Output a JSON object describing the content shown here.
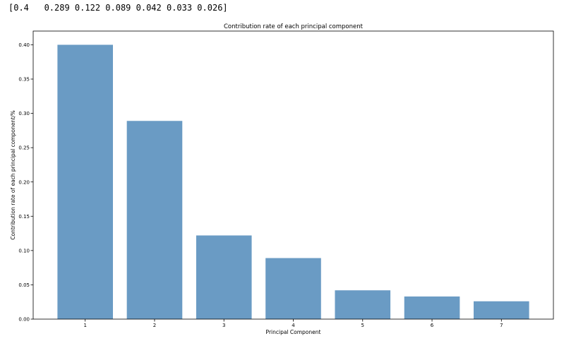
{
  "console": {
    "output_text": "[0.4   0.289 0.122 0.089 0.042 0.033 0.026]"
  },
  "colors": {
    "bar": "#6a9bc4",
    "axis": "#000000",
    "background": "#ffffff"
  },
  "chart_data": {
    "type": "bar",
    "title": "Contribution rate of each principal component",
    "xlabel": "Principal Component",
    "ylabel": "Contribution rate of each principal component/%",
    "categories": [
      "1",
      "2",
      "3",
      "4",
      "5",
      "6",
      "7"
    ],
    "values": [
      0.4,
      0.289,
      0.122,
      0.089,
      0.042,
      0.033,
      0.026
    ],
    "ylim": [
      0,
      0.42
    ],
    "yticks": [
      0.0,
      0.05,
      0.1,
      0.15,
      0.2,
      0.25,
      0.3,
      0.35,
      0.4
    ],
    "ytick_labels": [
      "0.00",
      "0.05",
      "0.10",
      "0.15",
      "0.20",
      "0.25",
      "0.30",
      "0.35",
      "0.40"
    ],
    "grid": false,
    "legend": false
  }
}
